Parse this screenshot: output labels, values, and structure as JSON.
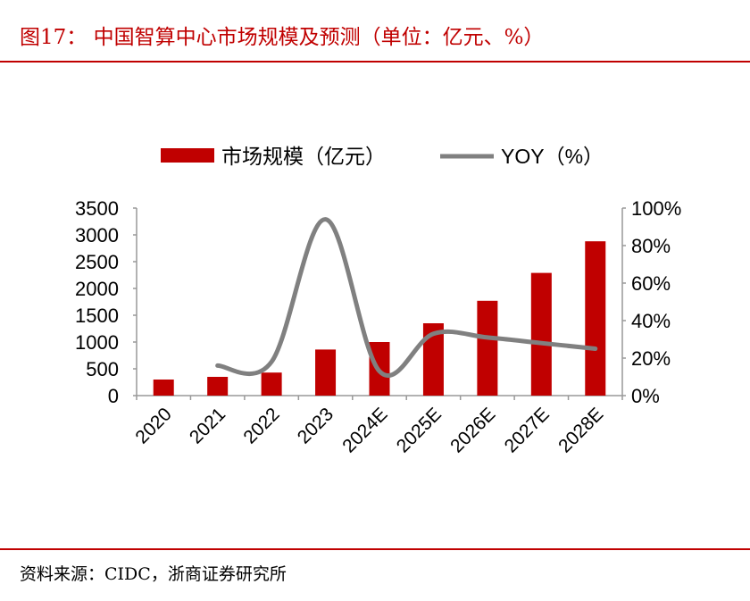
{
  "header": {
    "title": "图17：  中国智算中心市场规模及预测（单位：亿元、%）"
  },
  "footer": {
    "source": "资料来源：CIDC，浙商证券研究所"
  },
  "colors": {
    "accent": "#c00000",
    "bar": "#c00000",
    "line": "#808080"
  },
  "chart_data": {
    "type": "bar+line",
    "categories": [
      "2020",
      "2021",
      "2022",
      "2023",
      "2024E",
      "2025E",
      "2026E",
      "2027E",
      "2028E"
    ],
    "series": [
      {
        "name": "市场规模（亿元）",
        "type": "bar",
        "axis": "left",
        "values": [
          300,
          350,
          430,
          860,
          1000,
          1350,
          1770,
          2290,
          2880
        ]
      },
      {
        "name": "YOY（%）",
        "type": "line",
        "axis": "right",
        "values": [
          null,
          16,
          18,
          94,
          13,
          33,
          31,
          28,
          25
        ]
      }
    ],
    "y_left": {
      "range": [
        0,
        3500
      ],
      "ticks": [
        "0",
        "500",
        "1000",
        "1500",
        "2000",
        "2500",
        "3000",
        "3500"
      ]
    },
    "y_right": {
      "range": [
        0,
        100
      ],
      "ticks": [
        "0%",
        "20%",
        "40%",
        "60%",
        "80%",
        "100%"
      ]
    },
    "grid": false,
    "legend": "top"
  }
}
